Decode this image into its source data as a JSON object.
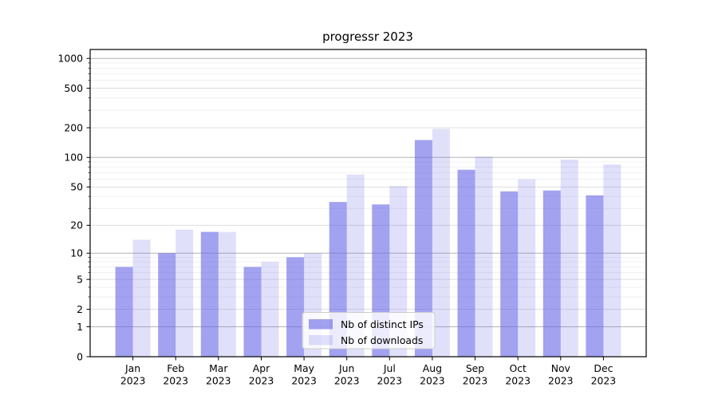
{
  "chart_data": {
    "type": "bar",
    "title": "progressr 2023",
    "categories": [
      "Jan 2023",
      "Feb 2023",
      "Mar 2023",
      "Apr 2023",
      "May 2023",
      "Jun 2023",
      "Jul 2023",
      "Aug 2023",
      "Sep 2023",
      "Oct 2023",
      "Nov 2023",
      "Dec 2023"
    ],
    "series": [
      {
        "name": "Nb of distinct IPs",
        "color": "rgba(100,100,230,0.6)",
        "rendered_hex": "#a2a2f1",
        "values": [
          7,
          10,
          17,
          7,
          9,
          35,
          33,
          150,
          75,
          45,
          46,
          41
        ]
      },
      {
        "name": "Nb of downloads",
        "color": "rgba(100,100,230,0.2)",
        "rendered_hex": "#e0e0fa",
        "values": [
          14,
          18,
          17,
          8,
          10,
          67,
          51,
          195,
          102,
          60,
          95,
          85
        ]
      }
    ],
    "xlabel": "",
    "ylabel": "",
    "yscale": "log1p",
    "ylim": [
      0,
      1230
    ],
    "yticks": [
      0,
      1,
      2,
      5,
      10,
      20,
      50,
      100,
      200,
      500,
      1000
    ],
    "grid": true,
    "grid_colors": {
      "major": "#b3b3b3",
      "mid": "#dadada",
      "minor": "#ededed"
    },
    "legend_position": "lower center",
    "legend_bg": "rgba(255,255,255,0.8)",
    "legend_border": "#cccccc"
  }
}
